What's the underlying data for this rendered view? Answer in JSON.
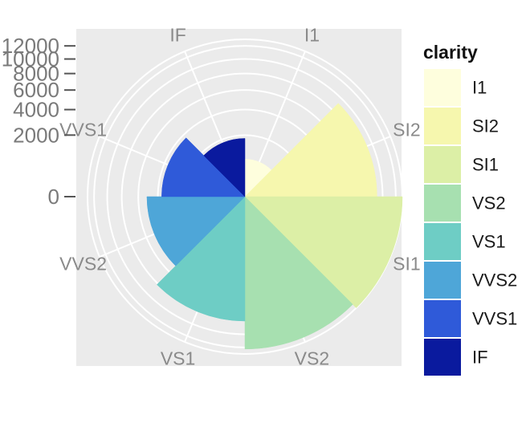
{
  "chart_data": {
    "type": "polar-bar",
    "title": "",
    "xlabel": "",
    "ylabel": "",
    "categories": [
      "I1",
      "SI2",
      "SI1",
      "VS2",
      "VS1",
      "VVS2",
      "VVS1",
      "IF"
    ],
    "values": [
      741,
      9194,
      13065,
      12258,
      8171,
      5066,
      3655,
      1790
    ],
    "colors": [
      "#fefedd",
      "#f6f7ae",
      "#dcefa6",
      "#a7e0b0",
      "#6ecdc5",
      "#4ea6d8",
      "#2f5ad9",
      "#0a1a9e"
    ],
    "y_ticks": [
      0,
      2000,
      4000,
      6000,
      8000,
      10000,
      12000
    ],
    "ylim": [
      0,
      13065
    ],
    "grid": true,
    "legend": {
      "title": "clarity",
      "position": "right",
      "items": [
        "I1",
        "SI2",
        "SI1",
        "VS2",
        "VS1",
        "VVS2",
        "VVS1",
        "IF"
      ]
    }
  }
}
